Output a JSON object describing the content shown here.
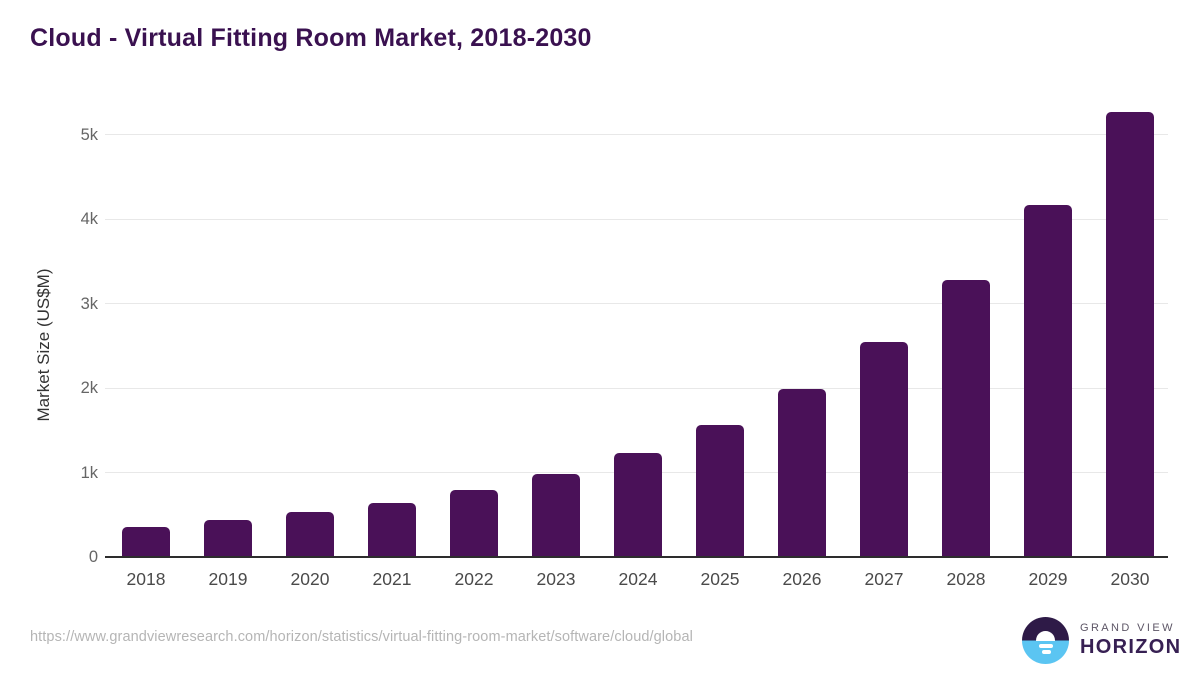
{
  "title": "Cloud - Virtual Fitting Room Market, 2018-2030",
  "colors": {
    "title": "#3a1150",
    "bar": "#4a1158",
    "grid": "#e8e8e8",
    "axis_line": "#2d2d2d",
    "ytick": "#666666",
    "xtick": "#4a4a4a",
    "axis_title": "#333333",
    "url": "#b5b5b5",
    "logo_purple": "#2e1a47",
    "logo_blue": "#5bc5f2",
    "logo_top": "#5d5666",
    "logo_bottom": "#372053"
  },
  "chart_data": {
    "type": "bar",
    "title": "Cloud - Virtual Fitting Room Market, 2018-2030",
    "categories": [
      "2018",
      "2019",
      "2020",
      "2021",
      "2022",
      "2023",
      "2024",
      "2025",
      "2026",
      "2027",
      "2028",
      "2029",
      "2030"
    ],
    "values": [
      350,
      435,
      530,
      635,
      795,
      985,
      1235,
      1560,
      1990,
      2550,
      3275,
      4165,
      5270
    ],
    "series_name": "Market Size (US$M)",
    "xlabel": "",
    "ylabel": "Market Size (US$M)",
    "ylim": [
      0,
      5500
    ],
    "yticks": [
      0,
      1000,
      2000,
      3000,
      4000,
      5000
    ],
    "ytick_labels": [
      "0",
      "1k",
      "2k",
      "3k",
      "4k",
      "5k"
    ],
    "grid": "horizontal",
    "legend": "none",
    "bar_color": "#4a1158"
  },
  "footer": {
    "source_url": "https://www.grandviewresearch.com/horizon/statistics/virtual-fitting-room-market/software/cloud/global",
    "logo": {
      "top": "GRAND VIEW",
      "bottom": "HORIZON"
    }
  }
}
